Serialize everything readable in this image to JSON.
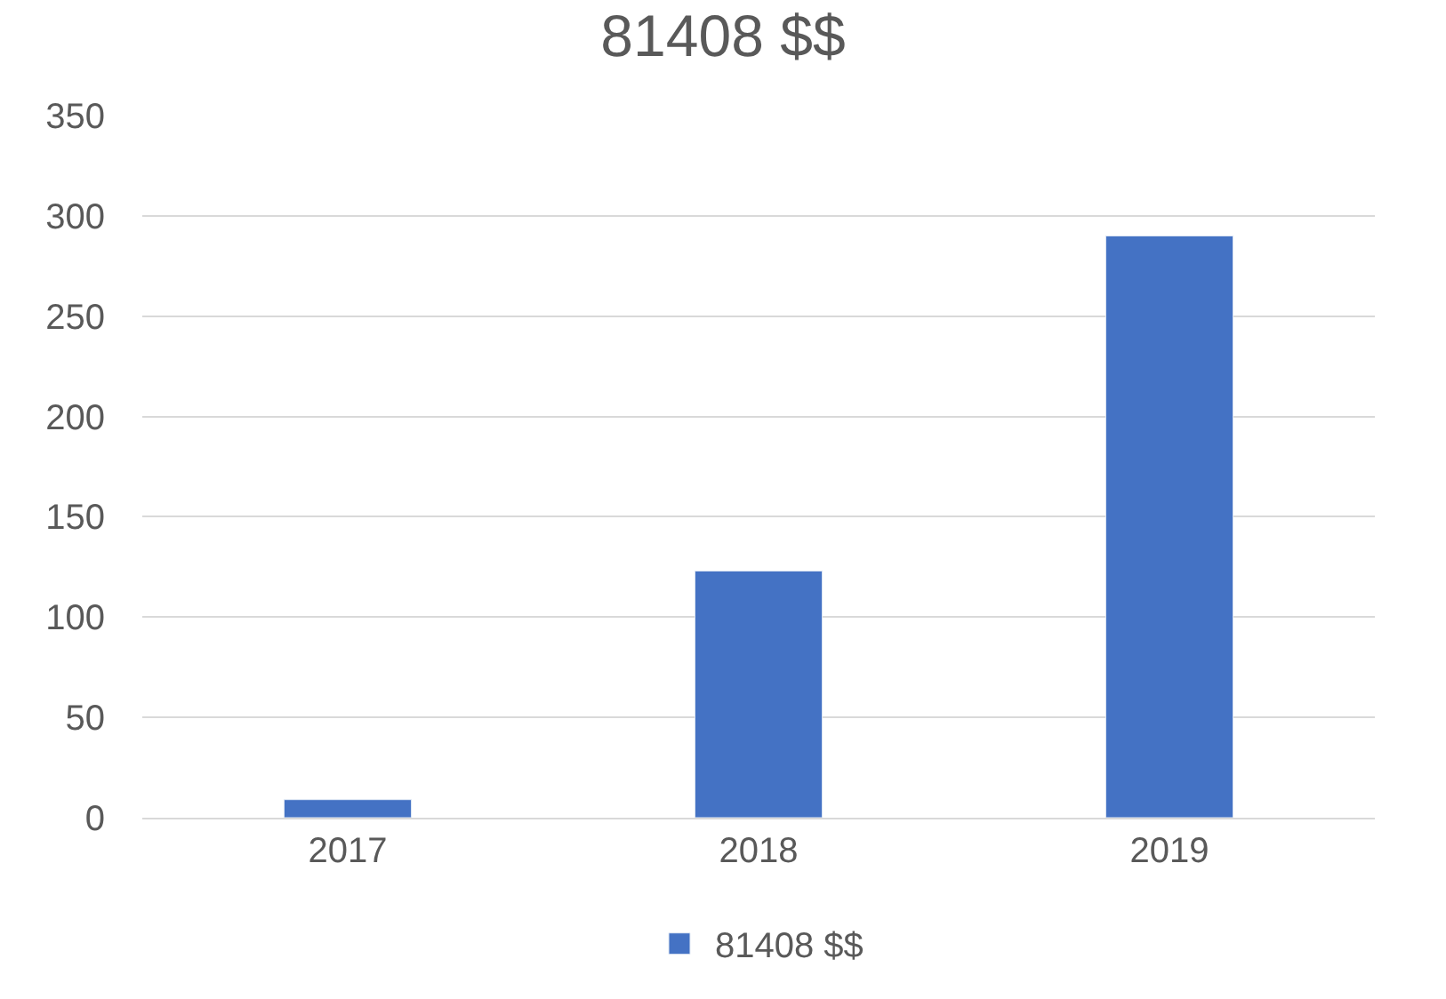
{
  "chart_data": {
    "type": "bar",
    "title": "81408 $$",
    "categories": [
      "2017",
      "2018",
      "2019"
    ],
    "series": [
      {
        "name": "81408 $$",
        "color": "#4472c4",
        "values": [
          9,
          123,
          290
        ]
      }
    ],
    "ylim": [
      0,
      350
    ],
    "yticks": [
      0,
      50,
      100,
      150,
      200,
      250,
      300,
      350
    ],
    "grid": "y",
    "legend": "bottom"
  }
}
